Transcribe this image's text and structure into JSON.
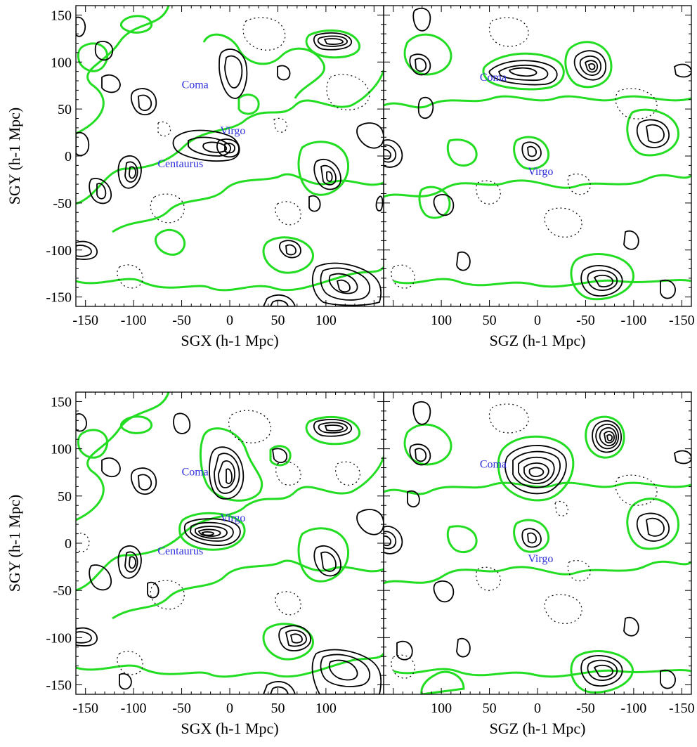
{
  "chart_data": [
    {
      "type": "contour",
      "panel": "top-left",
      "xlabel": "SGX (h-1 Mpc)",
      "ylabel": "SGY (h-1 Mpc)",
      "xlim": [
        -160,
        160
      ],
      "ylim": [
        -160,
        160
      ],
      "x_tick_labels": [
        "-150",
        "-100",
        "-50",
        "0",
        "50",
        "100"
      ],
      "y_tick_labels": [
        "150",
        "100",
        "50",
        "0",
        "-50",
        "-100",
        "-150"
      ],
      "annotations": [
        {
          "text": "Coma",
          "x": -50,
          "y": 72
        },
        {
          "text": "Virgo",
          "x": -10,
          "y": 23
        },
        {
          "text": "Centaurus",
          "x": -75,
          "y": -12
        }
      ]
    },
    {
      "type": "contour",
      "panel": "top-right",
      "xlabel": "SGZ (h-1 Mpc)",
      "ylabel": "",
      "xlim": [
        160,
        -160
      ],
      "ylim": [
        -160,
        160
      ],
      "x_tick_labels": [
        "100",
        "50",
        "0",
        "-50",
        "-100",
        "-150"
      ],
      "y_tick_labels": [],
      "annotations": [
        {
          "text": "Coma",
          "x": 60,
          "y": 80
        },
        {
          "text": "Virgo",
          "x": 10,
          "y": -20
        }
      ]
    },
    {
      "type": "contour",
      "panel": "bottom-left",
      "xlabel": "SGX (h-1 Mpc)",
      "ylabel": "SGY (h-1 Mpc)",
      "xlim": [
        -160,
        160
      ],
      "ylim": [
        -160,
        160
      ],
      "x_tick_labels": [
        "-150",
        "-100",
        "-50",
        "0",
        "50",
        "100"
      ],
      "y_tick_labels": [
        "150",
        "100",
        "50",
        "0",
        "-50",
        "-100",
        "-150"
      ],
      "annotations": [
        {
          "text": "Coma",
          "x": -50,
          "y": 72
        },
        {
          "text": "Virgo",
          "x": -10,
          "y": 23
        },
        {
          "text": "Centaurus",
          "x": -75,
          "y": -12
        }
      ]
    },
    {
      "type": "contour",
      "panel": "bottom-right",
      "xlabel": "SGZ (h-1 Mpc)",
      "ylabel": "",
      "xlim": [
        160,
        -160
      ],
      "ylim": [
        -160,
        160
      ],
      "x_tick_labels": [
        "100",
        "50",
        "0",
        "-50",
        "-100",
        "-150"
      ],
      "y_tick_labels": [],
      "annotations": [
        {
          "text": "Coma",
          "x": 60,
          "y": 80
        },
        {
          "text": "Virgo",
          "x": 10,
          "y": -20
        }
      ]
    }
  ],
  "colors": {
    "zero_contour": "#22dd22",
    "positive_contour": "#000000",
    "negative_contour": "#000000",
    "annotation": "#2f2fdc"
  }
}
